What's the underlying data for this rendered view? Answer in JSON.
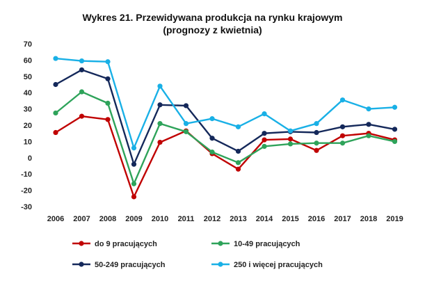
{
  "chart_data": {
    "type": "line",
    "title": "Wykres 21. Przewidywana produkcja na rynku krajowym",
    "subtitle": "(prognozy z kwietnia)",
    "xlabel": "",
    "ylabel": "",
    "x": [
      "2006",
      "2007",
      "2008",
      "2009",
      "2010",
      "2011",
      "2012",
      "2013",
      "2014",
      "2015",
      "2016",
      "2017",
      "2018",
      "2019"
    ],
    "ylim": [
      -30,
      70
    ],
    "yticks": [
      "70",
      "60",
      "50",
      "40",
      "30",
      "20",
      "10",
      "0",
      "-10",
      "-20",
      "-30"
    ],
    "grid": false,
    "legend_position": "bottom",
    "series": [
      {
        "name": "do 9 pracujących",
        "color": "#c00000",
        "values": [
          15.5,
          25.5,
          23.5,
          -24,
          9.5,
          16.5,
          2.5,
          -7,
          11,
          11.5,
          4.5,
          13.5,
          15,
          11
        ]
      },
      {
        "name": "10-49 pracujących",
        "color": "#2ea35a",
        "values": [
          27.5,
          40.5,
          33.5,
          -16,
          21,
          16,
          3.5,
          -3,
          7,
          8.5,
          9,
          9,
          13.5,
          10
        ]
      },
      {
        "name": "50-249 pracujących",
        "color": "#14285a",
        "values": [
          45,
          54,
          48.5,
          -4,
          32.5,
          32,
          12,
          4,
          15,
          16,
          15.5,
          19,
          20.5,
          17.5
        ]
      },
      {
        "name": "250 i więcej pracujących",
        "color": "#19b0e6",
        "values": [
          61,
          59.5,
          59,
          6,
          44,
          21,
          24,
          19,
          27,
          16.5,
          21,
          35.5,
          30,
          31
        ]
      }
    ]
  }
}
